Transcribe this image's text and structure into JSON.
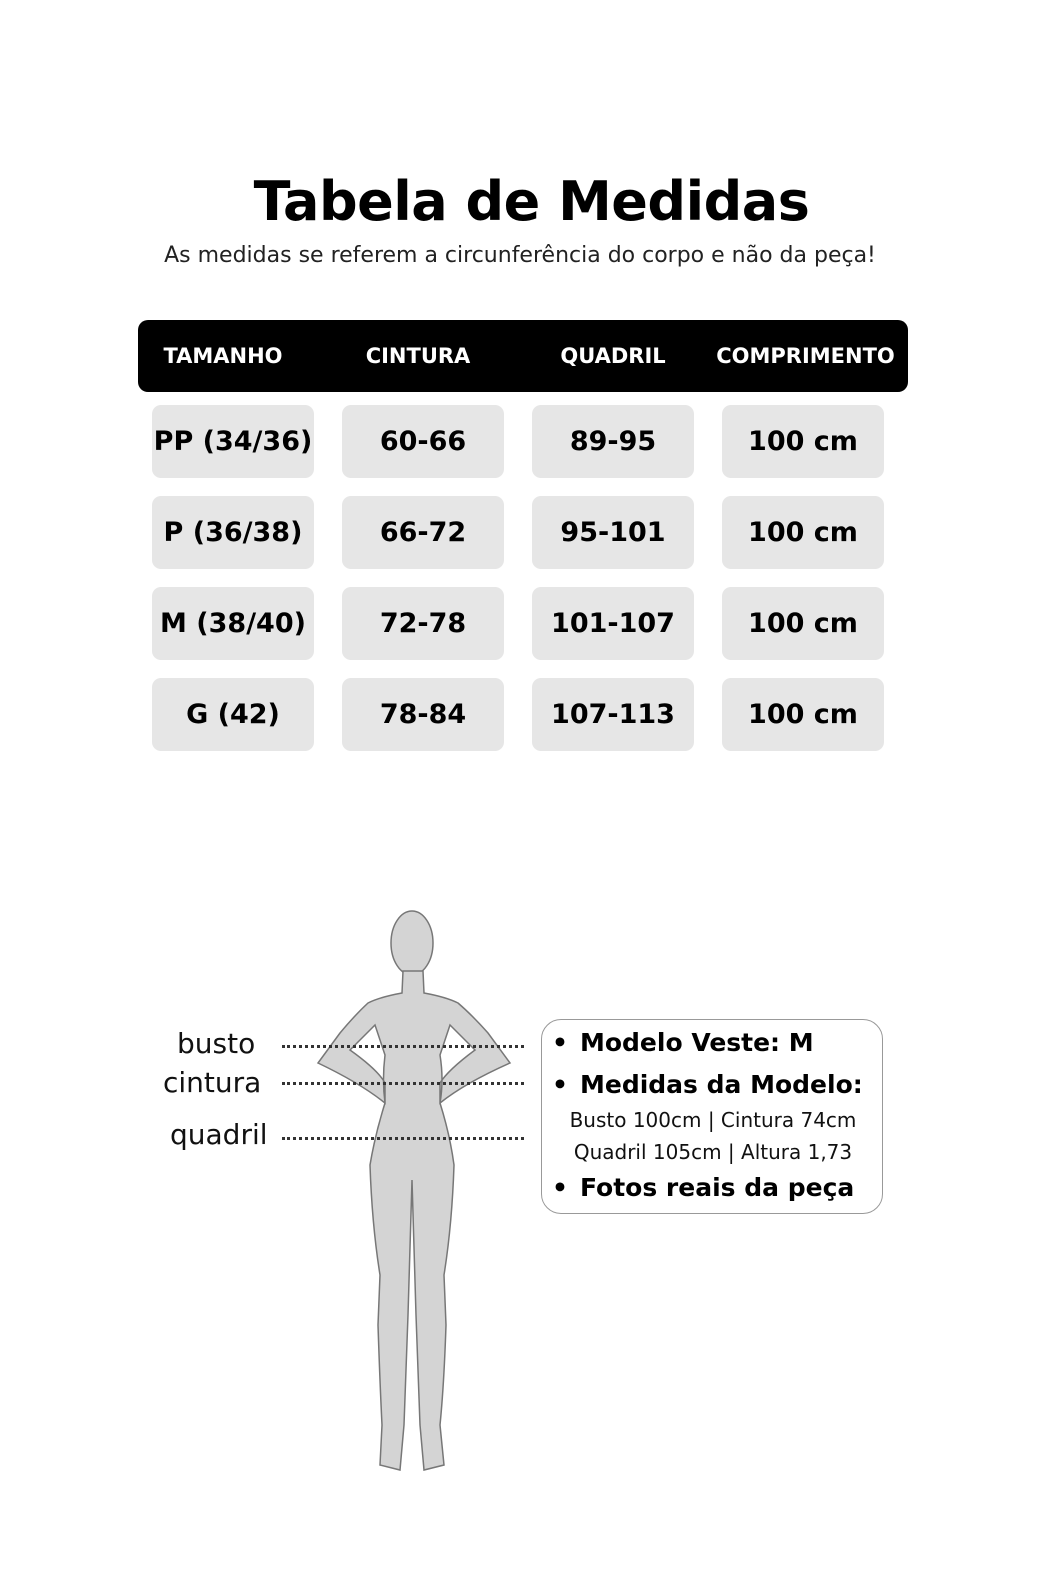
{
  "title": "Tabela de Medidas",
  "subtitle": "As medidas se referem a circunferência do corpo e não da peça!",
  "table": {
    "headers": [
      "TAMANHO",
      "CINTURA",
      "QUADRIL",
      "COMPRIMENTO"
    ],
    "rows": [
      [
        "PP (34/36)",
        "60-66",
        "89-95",
        "100 cm"
      ],
      [
        "P (36/38)",
        "66-72",
        "95-101",
        "100 cm"
      ],
      [
        "M (38/40)",
        "72-78",
        "101-107",
        "100 cm"
      ],
      [
        "G (42)",
        "78-84",
        "107-113",
        "100 cm"
      ]
    ]
  },
  "figure": {
    "labels": [
      "busto",
      "cintura",
      "quadril"
    ]
  },
  "info": {
    "modelo_veste": "Modelo Veste:  M",
    "medidas_title": "Medidas da Modelo:",
    "medidas_line1": "Busto 100cm | Cintura 74cm",
    "medidas_line2": "Quadril 105cm | Altura 1,73",
    "fotos": "Fotos reais da peça"
  },
  "colors": {
    "header_bg": "#000000",
    "cell_bg": "#e6e6e6",
    "figure_fill": "#d4d4d4"
  }
}
